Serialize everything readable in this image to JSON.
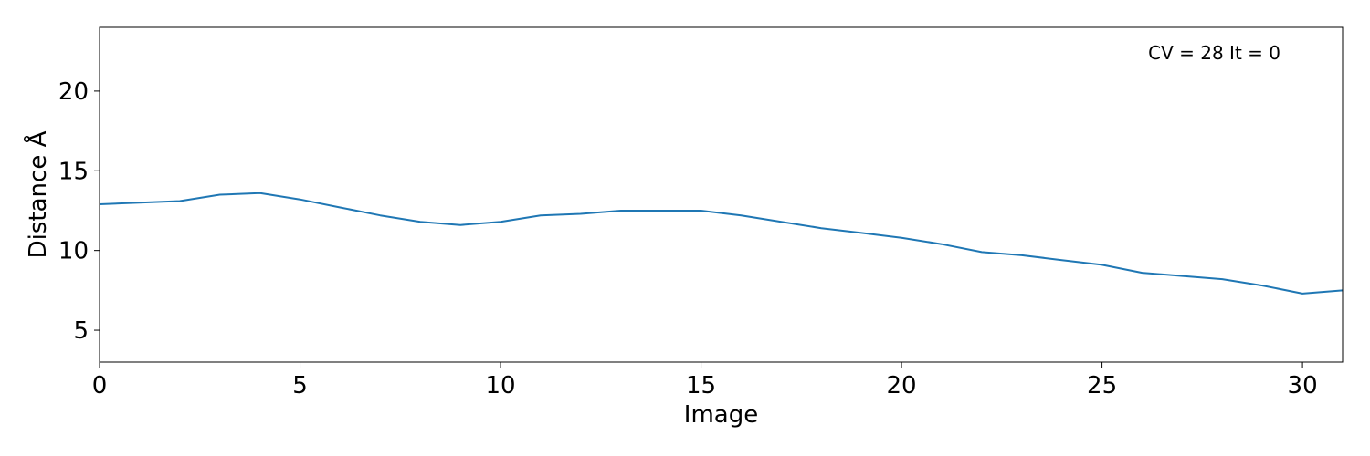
{
  "chart_data": {
    "type": "line",
    "title": "",
    "xlabel": "Image",
    "ylabel": "Distance Å",
    "annotation": "CV = 28 It = 0",
    "xlim": [
      0,
      31
    ],
    "ylim": [
      3,
      24
    ],
    "xticks": [
      0,
      5,
      10,
      15,
      20,
      25,
      30
    ],
    "yticks": [
      5,
      10,
      15,
      20
    ],
    "grid": false,
    "legend": false,
    "colors": {
      "line": "#1f77b4",
      "axes": "#000000"
    },
    "series": [
      {
        "x": [
          0,
          1,
          2,
          3,
          4,
          5,
          6,
          7,
          8,
          9,
          10,
          11,
          12,
          13,
          14,
          15,
          16,
          17,
          18,
          19,
          20,
          21,
          22,
          23,
          24,
          25,
          26,
          27,
          28,
          29,
          30,
          31
        ],
        "values": [
          12.9,
          13.0,
          13.1,
          13.5,
          13.6,
          13.2,
          12.7,
          12.2,
          11.8,
          11.6,
          11.8,
          12.2,
          12.3,
          12.5,
          12.5,
          12.5,
          12.2,
          11.8,
          11.4,
          11.1,
          10.8,
          10.4,
          9.9,
          9.7,
          9.4,
          9.1,
          8.6,
          8.4,
          8.2,
          7.8,
          7.3,
          7.5
        ]
      }
    ]
  }
}
